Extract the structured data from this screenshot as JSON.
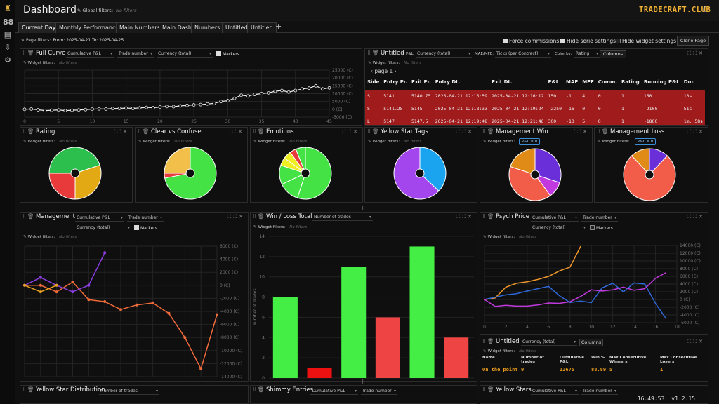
{
  "app": {
    "title": "Dashboard",
    "brand": "TRADECRAFT.CLUB",
    "global_filters_label": "Global filters:",
    "global_filters_value": "No filters",
    "time": "16:49:53",
    "version": "v1.2.15"
  },
  "tabs": [
    "Current Day",
    "Monthly Performance",
    "Main Numbers",
    "Main Dash",
    "Numbers",
    "Untitled",
    "Untitled"
  ],
  "page_filters": {
    "label": "Page filters:",
    "value": "From: 2025-04-21 To: 2025-04-25"
  },
  "options": {
    "force_commissions": "Force commissions",
    "hide_serie": "Hide serie settings",
    "hide_widget": "Hide widget settings",
    "clone_page": "Clone Page"
  },
  "widget_filters": {
    "label": "Widget filters:",
    "none": "No filters",
    "pnl_le0": "P&L ≤ 0"
  },
  "full_curve": {
    "title": "Full Curve",
    "sel1": "Cumulative P&L",
    "sel2": "Trade number",
    "sel3": "Currency (total)",
    "markers": "Markers",
    "y_ticks": [
      "25000 (C)",
      "20000 (C)",
      "15000 (C)",
      "10000 (C)",
      "5000 (C)",
      "0 (C)",
      "-5000 (C)"
    ],
    "x_ticks": [
      "0",
      "5",
      "10",
      "15",
      "20",
      "25",
      "30",
      "35",
      "40",
      "45"
    ]
  },
  "trades": {
    "title": "Untitled",
    "pnl_label": "P&L:",
    "pnl_sel": "Currency (total)",
    "maemfe_label": "MAE/MFE:",
    "maemfe_sel": "Ticks (per Contract)",
    "color_label": "Color by:",
    "color_sel": "Rating",
    "columns": "Columns",
    "page": "page 1",
    "headers": [
      "Side",
      "Entry Pr.",
      "Exit Pr.",
      "Entry Dt.",
      "Exit Dt.",
      "P&L",
      "MAE",
      "MFE",
      "Comm.",
      "Rating",
      "Running P&L",
      "Dur."
    ],
    "rows": [
      [
        "S",
        "5141",
        "5140.75",
        "2025-04-21 12:15:59",
        "2025-04-21 12:16:12",
        "150",
        "-1",
        "4",
        "0",
        "1",
        "150",
        "13s"
      ],
      [
        "S",
        "5141.25",
        "5145",
        "2025-04-21 12:18:33",
        "2025-04-21 12:19:24",
        "-2250",
        "-16",
        "0",
        "0",
        "1",
        "-2100",
        "51s"
      ],
      [
        "L",
        "5147",
        "5147.5",
        "2025-04-21 12:19:48",
        "2025-04-21 12:21:46",
        "300",
        "-13",
        "5",
        "0",
        "1",
        "-1800",
        "1m, 58s"
      ]
    ]
  },
  "pies": {
    "rating": "Rating",
    "clear": "Clear vs Confuse",
    "emotions": "Emotions",
    "yellow_star_tags": "Yellow Star Tags",
    "mgmt_win": "Management Win",
    "mgmt_loss": "Management Loss"
  },
  "management": {
    "title": "Management",
    "sel1": "Cumulative P&L",
    "sel2": "Trade number",
    "sel3": "Currency (total)",
    "markers": "Markers",
    "y_ticks": [
      "6000 (C)",
      "4000 (C)",
      "2000 (C)",
      "0 (C)",
      "-2000 (C)",
      "-4000 (C)",
      "-6000 (C)",
      "-8000 (C)",
      "-10000 (C)",
      "-12000 (C)",
      "-14000 (C)"
    ],
    "series": [
      {
        "name": "orange",
        "color": "#f26b3a",
        "y": [
          0,
          0,
          -1000,
          500,
          -2200,
          -2500,
          -3700,
          -3000,
          -2700,
          -4300,
          -8000,
          -12800,
          -4500
        ]
      },
      {
        "name": "purple",
        "color": "#8a3ee0",
        "y": [
          0,
          1200,
          0,
          -1000,
          0,
          5000
        ]
      },
      {
        "name": "orange2",
        "color": "#e8a21f",
        "y": [
          0,
          -1000,
          0
        ]
      }
    ]
  },
  "winloss": {
    "title": "Win / Loss Total",
    "sel": "Number of trades",
    "ylabel": "Number of Trades",
    "y_ticks": [
      "0",
      "2",
      "4",
      "6",
      "8",
      "10",
      "12",
      "14"
    ],
    "chart_data": {
      "type": "bar",
      "values": [
        8,
        1,
        11,
        6,
        13,
        4
      ],
      "colors": [
        "#44ee44",
        "#ee1111",
        "#44ee44",
        "#ee4444",
        "#44ee44",
        "#ee4444"
      ],
      "ylim": [
        0,
        14
      ]
    }
  },
  "psych": {
    "title": "Psych Price",
    "sel1": "Cumulative P&L",
    "sel2": "Trade number",
    "sel3": "Currency (total)",
    "markers": "Markers",
    "y_ticks": [
      "14000 (C)",
      "12000 (C)",
      "10000 (C)",
      "8000 (C)",
      "6000 (C)",
      "4000 (C)",
      "2000 (C)",
      "0 (C)",
      "-2000 (C)",
      "-4000 (C)",
      "-6000 (C)"
    ],
    "x_ticks": [
      "0",
      "2",
      "4",
      "6",
      "8",
      "10",
      "12",
      "14",
      "16",
      "18"
    ],
    "series": [
      {
        "color": "#f0962a",
        "x": [
          0,
          1,
          2,
          3,
          4,
          5,
          6,
          7,
          8,
          9
        ],
        "y": [
          0,
          400,
          3200,
          4200,
          4600,
          5200,
          6000,
          7400,
          8400,
          13800
        ]
      },
      {
        "color": "#2f68d8",
        "x": [
          0,
          1,
          2,
          3,
          4,
          5,
          6,
          7,
          8,
          9,
          10,
          11,
          12,
          13,
          14,
          15,
          16,
          17
        ],
        "y": [
          0,
          600,
          1200,
          1500,
          2200,
          2800,
          3400,
          1000,
          -800,
          -400,
          -800,
          3000,
          4200,
          2000,
          4300,
          4000,
          -1000,
          -5000
        ]
      },
      {
        "color": "#c23adf",
        "x": [
          0,
          1,
          2,
          3,
          4,
          5,
          6,
          7,
          8,
          9,
          10,
          11,
          12,
          13,
          14,
          15,
          16,
          17
        ],
        "y": [
          0,
          -1800,
          -1500,
          -1700,
          -1700,
          -1400,
          -900,
          -1000,
          -600,
          800,
          2500,
          2200,
          2500,
          3200,
          2400,
          2800,
          5500,
          7000
        ]
      }
    ]
  },
  "summary": {
    "title": "Untitled",
    "sel": "Currency (total)",
    "columns": "Columns",
    "headers": [
      "Name",
      "Number of trades",
      "Cumulative P&L",
      "Win %",
      "Max Consecutive Winners",
      "Max Consecutive Losers"
    ],
    "row": [
      "On the point",
      "9",
      "13675",
      "88.89",
      "5",
      "1"
    ]
  },
  "bottom": {
    "ys_dist": "Yellow Star Distribution",
    "ys_sel": "Number of trades",
    "shimmy": "Shimmy Entries",
    "sh_sel1": "Cumulative P&L",
    "sh_sel2": "Trade number",
    "ystars": "Yellow Stars",
    "ys_sel1": "Cumulative P&L",
    "ys_sel2": "Trade number"
  }
}
